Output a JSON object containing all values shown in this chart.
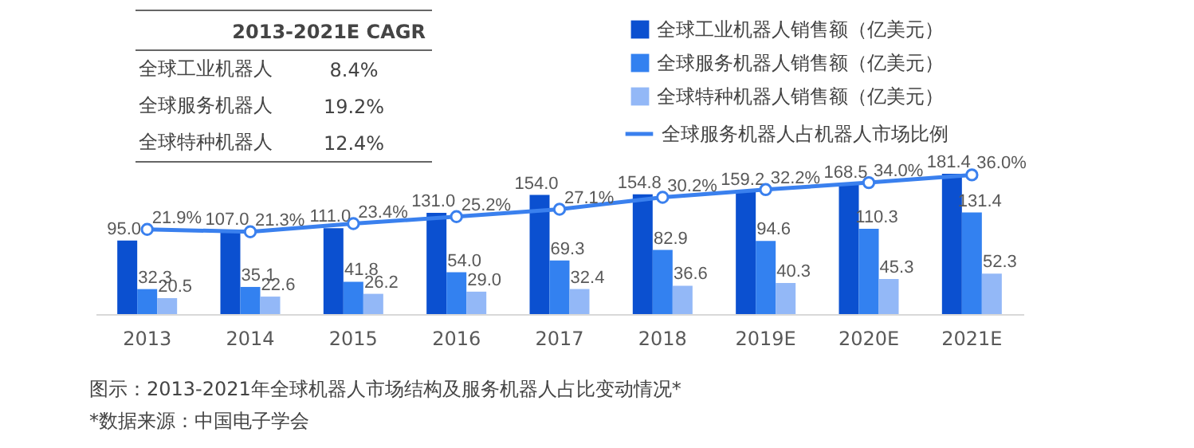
{
  "chart_data": [
    {
      "type": "bar",
      "categories": [
        "2013",
        "2014",
        "2015",
        "2016",
        "2017",
        "2018",
        "2019E",
        "2020E",
        "2021E"
      ],
      "series": [
        {
          "name": "全球工业机器人销售额（亿美元）",
          "color": "#0b50d0",
          "values": [
            95.0,
            107.0,
            111.0,
            131.0,
            154.0,
            154.8,
            159.2,
            168.5,
            181.4
          ],
          "value_labels": [
            "95.0",
            "107.0",
            "111.0",
            "131.0",
            "154.0",
            "154.8",
            "159.2",
            "168.5",
            "181.4"
          ]
        },
        {
          "name": "全球服务机器人销售额（亿美元）",
          "color": "#3381f0",
          "values": [
            32.3,
            35.1,
            41.8,
            54.0,
            69.3,
            82.9,
            94.6,
            110.3,
            131.4
          ],
          "value_labels": [
            "32.3",
            "35.1",
            "41.8",
            "54.0",
            "69.3",
            "82.9",
            "94.6",
            "110.3",
            "131.4"
          ]
        },
        {
          "name": "全球特种机器人销售额（亿美元）",
          "color": "#93b8f7",
          "values": [
            20.5,
            22.6,
            26.2,
            29.0,
            32.4,
            36.6,
            40.3,
            45.3,
            52.3
          ],
          "value_labels": [
            "20.5",
            "22.6",
            "26.2",
            "29.0",
            "32.4",
            "36.6",
            "40.3",
            "45.3",
            "52.3"
          ]
        },
        {
          "name": "全球服务机器人占机器人市场比例",
          "type": "line",
          "axis": "y2",
          "color": "#3a80ee",
          "values": [
            21.9,
            21.3,
            23.4,
            25.2,
            27.1,
            30.2,
            32.2,
            34.0,
            36.0
          ],
          "value_labels": [
            "21.9%",
            "21.3%",
            "23.4%",
            "25.2%",
            "27.1%",
            "30.2%",
            "32.2%",
            "34.0%",
            "36.0%"
          ]
        }
      ],
      "marker": "circle",
      "legend": "top right",
      "annotations": [
        "图示：2013-2021年全球机器人市场结构及服务机器人占比变动情况*",
        "*数据来源：中国电子学会"
      ]
    },
    {
      "type": "other",
      "title": "2013-2021E CAGR",
      "categories": [
        "全球工业机器人",
        "全球服务机器人",
        "全球特种机器人"
      ],
      "value_labels": [
        "8.4%",
        "19.2%",
        "12.4%"
      ]
    }
  ]
}
